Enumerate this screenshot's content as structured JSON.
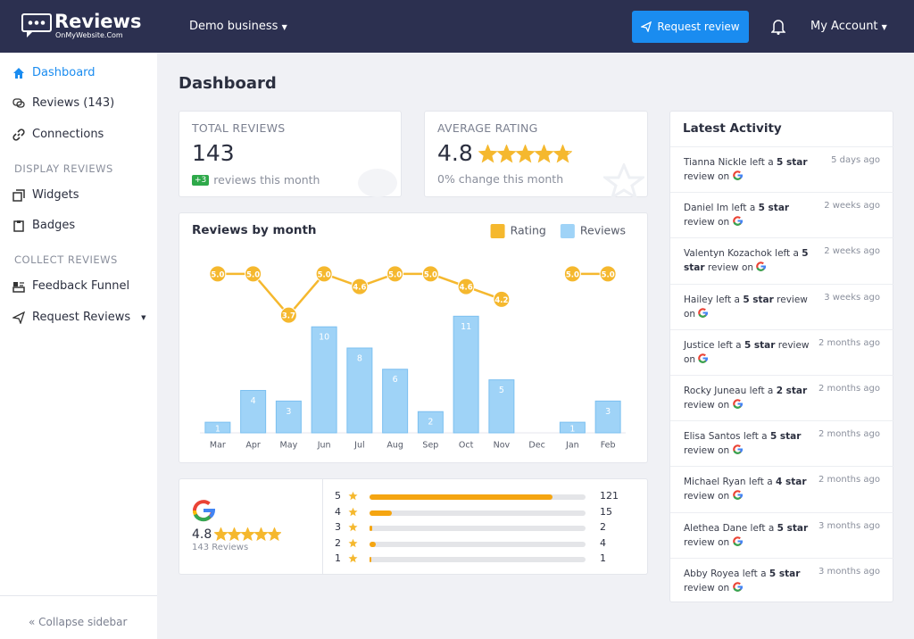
{
  "header": {
    "logo_title": "Reviews",
    "logo_subtitle": "OnMyWebsite.Com",
    "business": "Demo business",
    "request_button": "Request review",
    "account": "My Account"
  },
  "sidebar": {
    "nav": [
      "Dashboard",
      "Reviews (143)",
      "Connections"
    ],
    "display_heading": "DISPLAY REVIEWS",
    "display": [
      "Widgets",
      "Badges"
    ],
    "collect_heading": "COLLECT REVIEWS",
    "collect": [
      "Feedback Funnel",
      "Request Reviews"
    ],
    "collapse": "Collapse sidebar"
  },
  "page_title": "Dashboard",
  "stats": {
    "total_label": "TOTAL REVIEWS",
    "total_value": 143,
    "total_badge": "+3",
    "total_note": "reviews this month",
    "avg_label": "AVERAGE RATING",
    "avg_value": 4.8,
    "avg_note": "0% change this month"
  },
  "chart_data": {
    "type": "bar_line",
    "title": "Reviews by month",
    "categories": [
      "Mar",
      "Apr",
      "May",
      "Jun",
      "Jul",
      "Aug",
      "Sep",
      "Oct",
      "Nov",
      "Dec",
      "Jan",
      "Feb"
    ],
    "series": [
      {
        "name": "Rating",
        "color": "#f5b82e",
        "type": "line",
        "axis": "y2",
        "values": [
          5.0,
          5.0,
          3.7,
          5.0,
          4.6,
          5.0,
          5.0,
          4.6,
          4.2,
          null,
          5.0,
          5.0
        ],
        "value_labels": [
          "5.0",
          "5.0",
          "3.7",
          "5.0",
          "4.6",
          "5.0",
          "5.0",
          "4.6",
          "4.2",
          null,
          "5.0",
          "5.0"
        ]
      },
      {
        "name": "Reviews",
        "color": "#9fd3f7",
        "type": "bar",
        "values": [
          1,
          4,
          3,
          10,
          8,
          6,
          2,
          11,
          5,
          null,
          1,
          3
        ]
      }
    ],
    "ylim": [
      0,
      16.5
    ],
    "y2lim": [
      0,
      5.5
    ],
    "legend": "top-right"
  },
  "google": {
    "rating": 4.8,
    "count_label": "143 Reviews",
    "distribution": [
      {
        "stars": 5,
        "count": 121
      },
      {
        "stars": 4,
        "count": 15
      },
      {
        "stars": 3,
        "count": 2
      },
      {
        "stars": 2,
        "count": 4
      },
      {
        "stars": 1,
        "count": 1
      }
    ]
  },
  "activity": {
    "title": "Latest Activity",
    "items": [
      {
        "before": "Tianna Nickle left a",
        "bold": "5 star",
        "after": "review on",
        "time": "5 days ago"
      },
      {
        "before": "Daniel Im left a",
        "bold": "5 star",
        "after": "review on",
        "time": "2 weeks ago"
      },
      {
        "before": "Valentyn Kozachok left a",
        "bold": "5 star",
        "after": "review on",
        "time": "2 weeks ago"
      },
      {
        "before": "Hailey left a",
        "bold": "5 star",
        "after": "review on",
        "time": "3 weeks ago"
      },
      {
        "before": "Justice left a",
        "bold": "5 star",
        "after": "review on",
        "time": "2 months ago"
      },
      {
        "before": "Rocky Juneau left a",
        "bold": "2 star",
        "after": "review on",
        "time": "2 months ago"
      },
      {
        "before": "Elisa Santos left a",
        "bold": "5 star",
        "after": "review on",
        "time": "2 months ago"
      },
      {
        "before": "Michael Ryan left a",
        "bold": "4 star",
        "after": "review on",
        "time": "2 months ago"
      },
      {
        "before": "Alethea Dane left a",
        "bold": "5 star",
        "after": "review on",
        "time": "3 months ago"
      },
      {
        "before": "Abby Royea left a",
        "bold": "5 star",
        "after": "review on",
        "time": "3 months ago"
      }
    ]
  }
}
